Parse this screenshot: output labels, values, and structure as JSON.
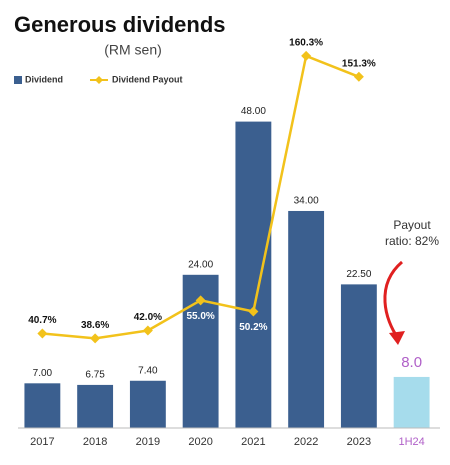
{
  "chart_data": {
    "type": "bar_line",
    "title": "Generous dividends",
    "subtitle": "(RM sen)",
    "categories": [
      "2017",
      "2018",
      "2019",
      "2020",
      "2021",
      "2022",
      "2023",
      "1H24"
    ],
    "category_colors": [
      "#333333",
      "#333333",
      "#333333",
      "#333333",
      "#333333",
      "#333333",
      "#333333",
      "#b060c8"
    ],
    "series": [
      {
        "name": "Dividend",
        "type": "bar",
        "color": "#3b5f8f",
        "colors": [
          "#3b5f8f",
          "#3b5f8f",
          "#3b5f8f",
          "#3b5f8f",
          "#3b5f8f",
          "#3b5f8f",
          "#3b5f8f",
          "#a6dcec"
        ],
        "values": [
          7,
          6.75,
          7.4,
          24,
          48,
          34,
          22.5,
          8
        ],
        "value_labels": [
          "7.00",
          "6.75",
          "7.40",
          "24.00",
          "48.00",
          "34.00",
          "22.50",
          "8.0"
        ]
      },
      {
        "name": "Dividend Payout",
        "type": "line",
        "axis": "y2",
        "color": "#f2c21b",
        "values": [
          40.7,
          38.6,
          42.0,
          55.0,
          50.2,
          160.3,
          151.3,
          null
        ],
        "value_labels": [
          "40.7%",
          "38.6%",
          "42.0%",
          "55.0%",
          "50.2%",
          "160.3%",
          "151.3%",
          null
        ]
      }
    ],
    "ylim": [
      0,
      60
    ],
    "y2lim": [
      0,
      165
    ],
    "annotation": [
      "Payout",
      "ratio: 82%"
    ],
    "annotation_color": "#e02020"
  }
}
